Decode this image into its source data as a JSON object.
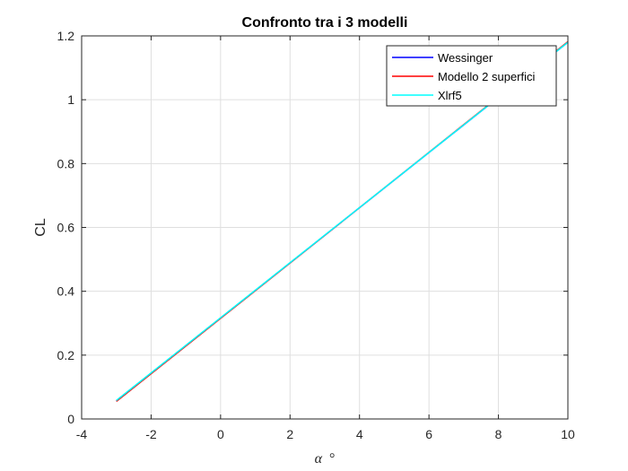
{
  "chart_data": {
    "type": "line",
    "title": "Confronto tra i 3 modelli",
    "xlabel_symbol": "α",
    "xlabel_unit": "°",
    "ylabel": "CL",
    "xlim": [
      -4,
      10
    ],
    "ylim": [
      0,
      1.2
    ],
    "xticks": [
      -4,
      -2,
      0,
      2,
      4,
      6,
      8,
      10
    ],
    "xtick_labels": [
      "-4",
      "-2",
      "0",
      "2",
      "4",
      "6",
      "8",
      "10"
    ],
    "yticks": [
      0,
      0.2,
      0.4,
      0.6,
      0.8,
      1.0,
      1.2
    ],
    "ytick_labels": [
      "0",
      "0.2",
      "0.4",
      "0.6",
      "0.8",
      "1",
      "1.2"
    ],
    "grid": true,
    "legend_position": "top-right",
    "series": [
      {
        "name": "Wessinger",
        "color": "#0000ff",
        "x": [
          -3,
          10
        ],
        "y": [
          0.057,
          1.18
        ]
      },
      {
        "name": "Modello 2 superfici",
        "color": "#ff0000",
        "x": [
          -3,
          10
        ],
        "y": [
          0.055,
          1.182
        ]
      },
      {
        "name": "Xlrf5",
        "color": "#00ffff",
        "x": [
          -3,
          10
        ],
        "y": [
          0.058,
          1.18
        ]
      }
    ]
  }
}
